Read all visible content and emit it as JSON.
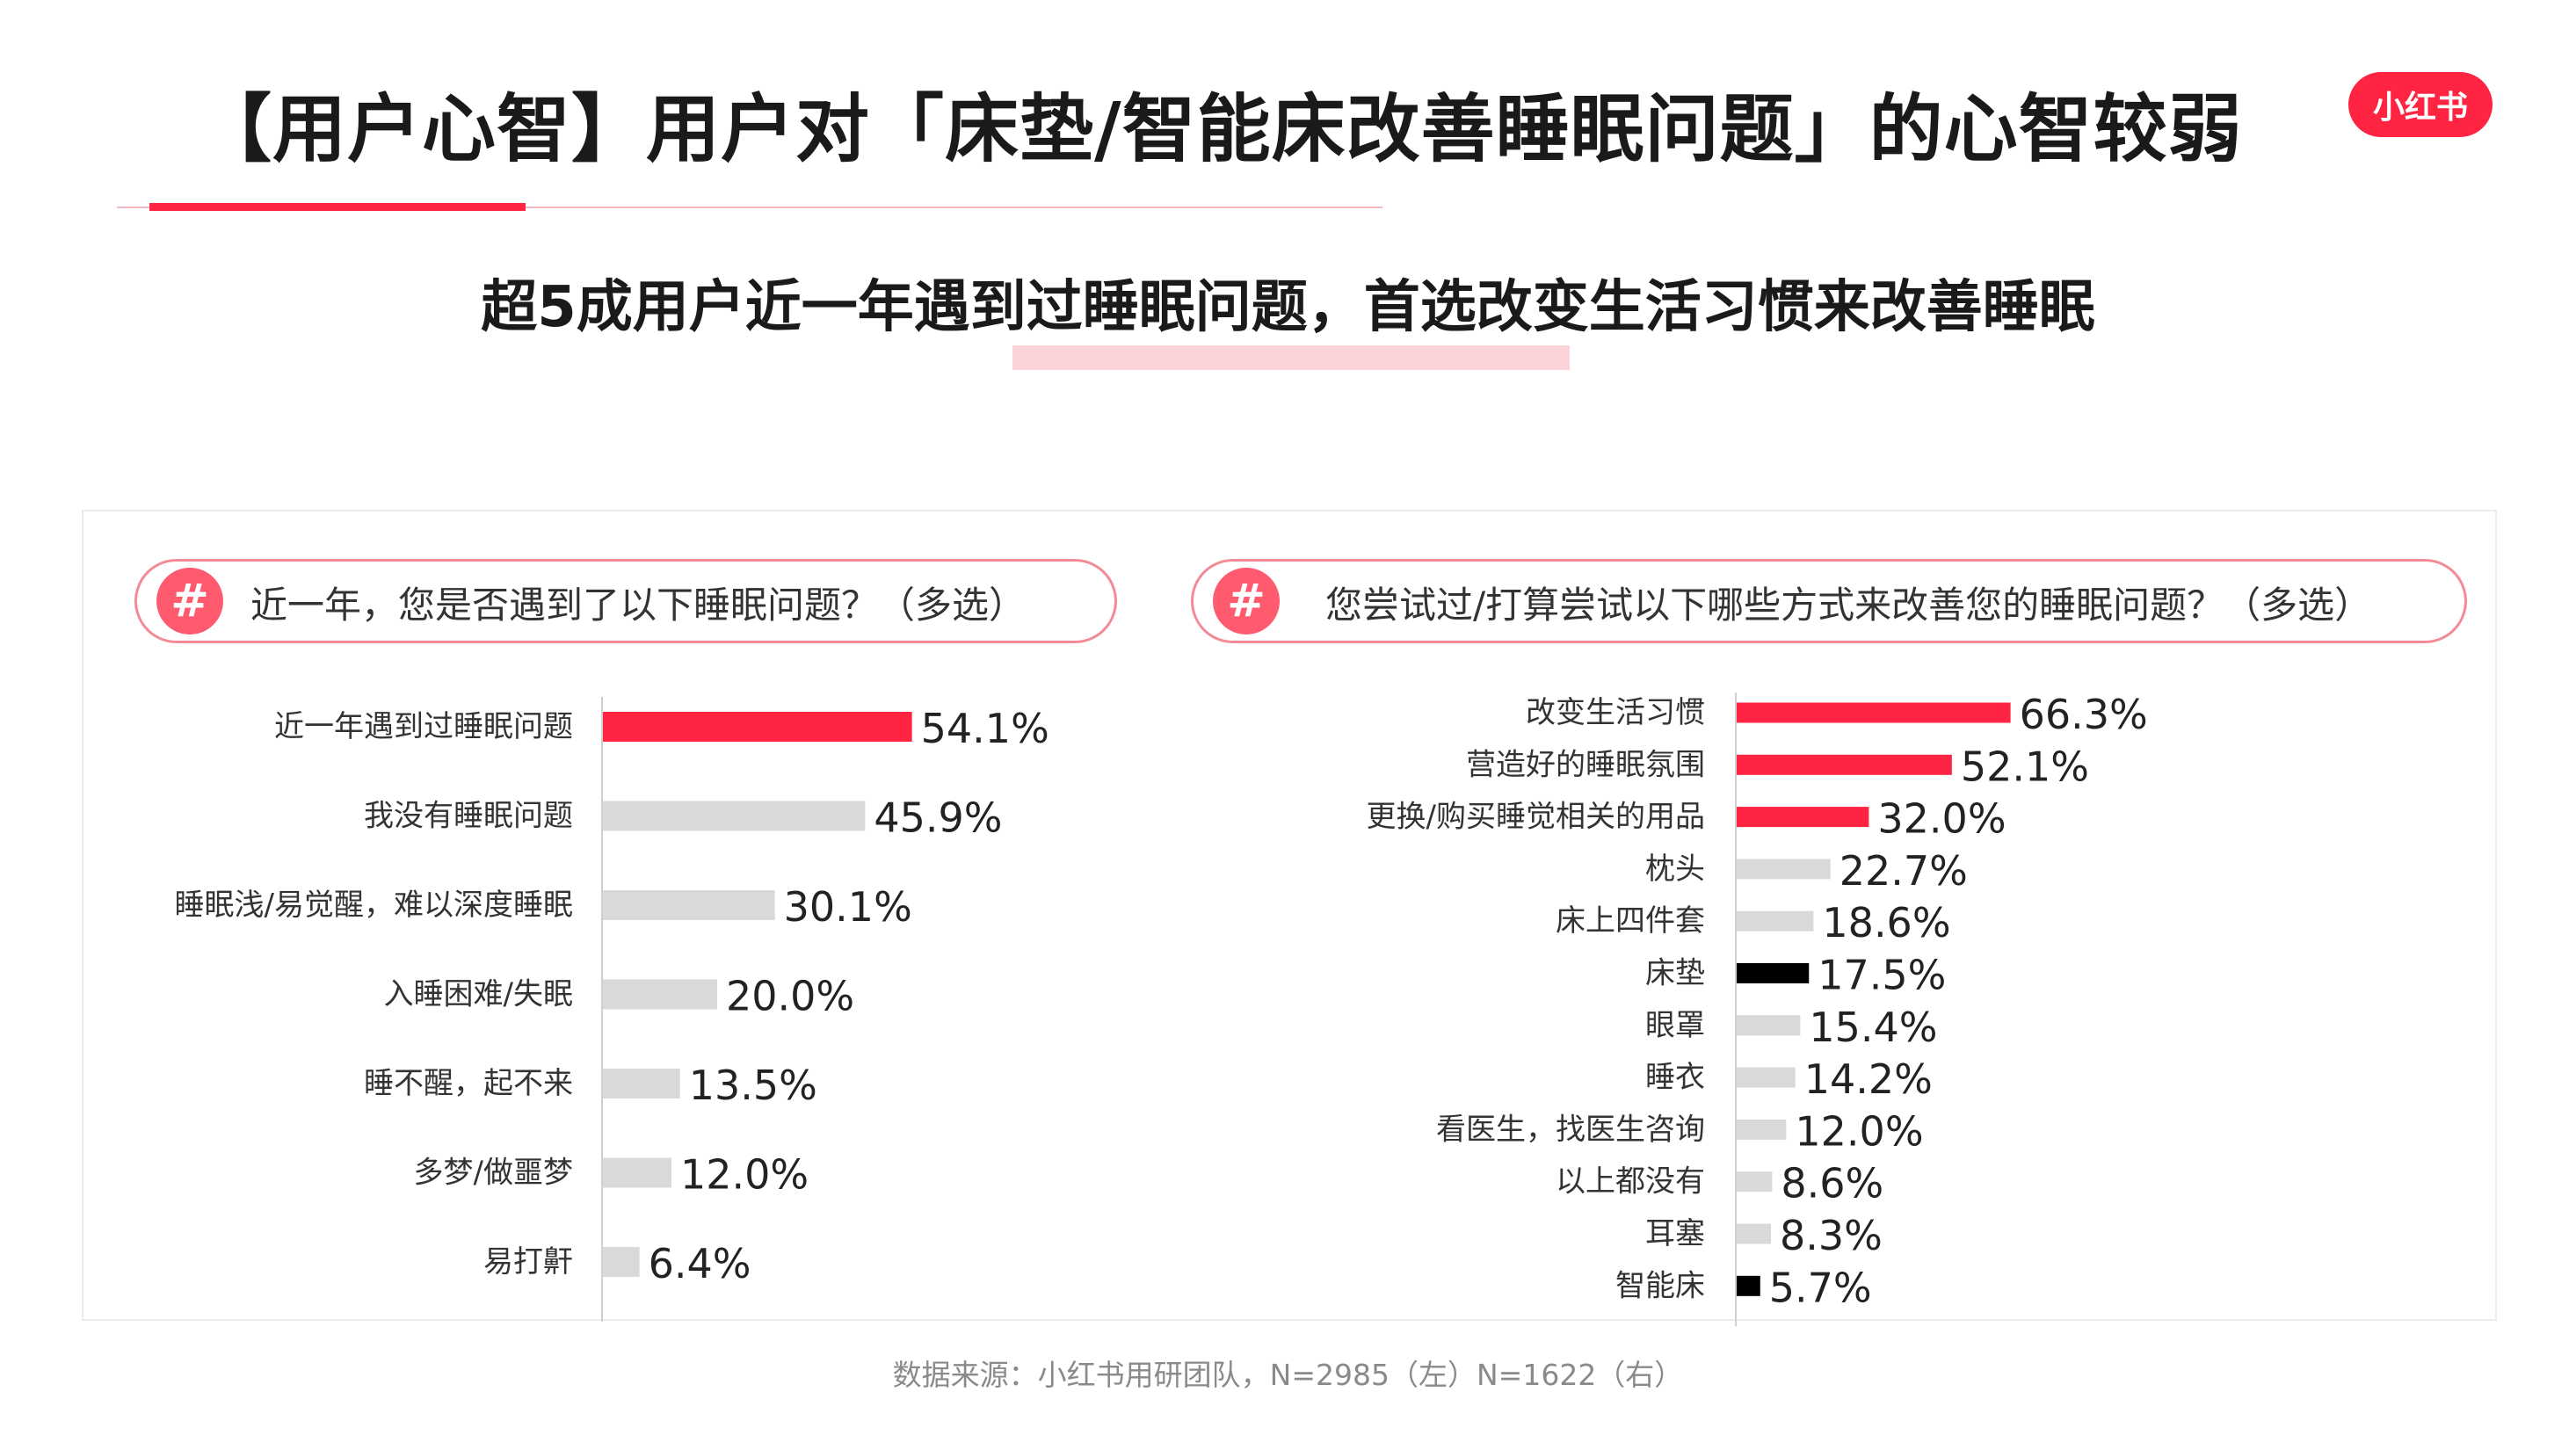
{
  "header": {
    "title": "【用户心智】用户对「床垫/智能床改善睡眠问题」的心智较弱",
    "logo_text": "小红书",
    "subtitle": "超5成用户近一年遇到过睡眠问题，首选改变生活习惯来改善睡眠"
  },
  "colors": {
    "brand": "#ff2442",
    "highlight_bar": "#ff2442",
    "focus_bar": "#000000",
    "neutral_bar": "#d9d9d9",
    "pill_border": "#f28a97",
    "hash_badge": "#ff5a6e"
  },
  "left_panel": {
    "question": "近一年，您是否遇到了以下睡眠问题？（多选）",
    "badge": "#"
  },
  "right_panel": {
    "question": "您尝试过/打算尝试以下哪些方式来改善您的睡眠问题？（多选）",
    "badge": "#"
  },
  "chart_data": [
    {
      "type": "bar",
      "orientation": "horizontal",
      "unit": "%",
      "xlim": [
        0,
        100
      ],
      "grid": false,
      "categories": [
        "近一年遇到过睡眠问题",
        "我没有睡眠问题",
        "睡眠浅/易觉醒，难以深度睡眠",
        "入睡困难/失眠",
        "睡不醒，起不来",
        "多梦/做噩梦",
        "易打鼾"
      ],
      "values": [
        54.1,
        45.9,
        30.1,
        20.0,
        13.5,
        12.0,
        6.4
      ],
      "labels": [
        "54.1%",
        "45.9%",
        "30.1%",
        "20.0%",
        "13.5%",
        "12.0%",
        "6.4%"
      ],
      "bar_colors": [
        "red",
        "grey",
        "grey",
        "grey",
        "grey",
        "grey",
        "grey"
      ]
    },
    {
      "type": "bar",
      "orientation": "horizontal",
      "unit": "%",
      "xlim": [
        0,
        100
      ],
      "grid": false,
      "categories": [
        "改变生活习惯",
        "营造好的睡眠氛围",
        "更换/购买睡觉相关的用品",
        "枕头",
        "床上四件套",
        "床垫",
        "眼罩",
        "睡衣",
        "看医生，找医生咨询",
        "以上都没有",
        "耳塞",
        "智能床"
      ],
      "values": [
        66.3,
        52.1,
        32.0,
        22.7,
        18.6,
        17.5,
        15.4,
        14.2,
        12.0,
        8.6,
        8.3,
        5.7
      ],
      "labels": [
        "66.3%",
        "52.1%",
        "32.0%",
        "22.7%",
        "18.6%",
        "17.5%",
        "15.4%",
        "14.2%",
        "12.0%",
        "8.6%",
        "8.3%",
        "5.7%"
      ],
      "bar_colors": [
        "red",
        "red",
        "red",
        "grey",
        "grey",
        "black",
        "grey",
        "grey",
        "grey",
        "grey",
        "grey",
        "black"
      ]
    }
  ],
  "footer": {
    "source": "数据来源：小红书用研团队，N=2985（左）N=1622（右）"
  }
}
